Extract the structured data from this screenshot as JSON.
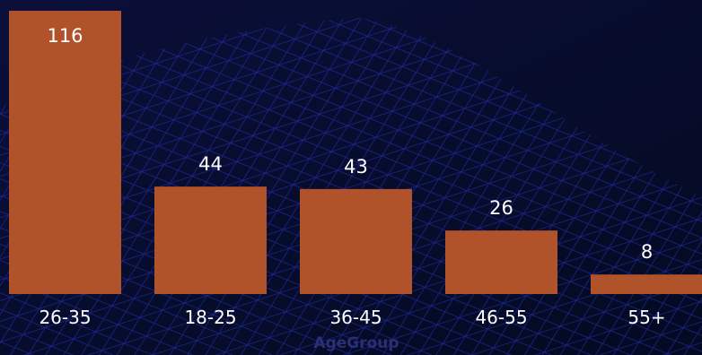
{
  "chart_data": {
    "type": "bar",
    "x_label": "AgeGroup",
    "categories": [
      "26-35",
      "18-25",
      "36-45",
      "46-55",
      "55+"
    ],
    "values": [
      116,
      44,
      43,
      26,
      8
    ],
    "color": "#b0532a",
    "ylim": [
      0,
      116
    ]
  }
}
